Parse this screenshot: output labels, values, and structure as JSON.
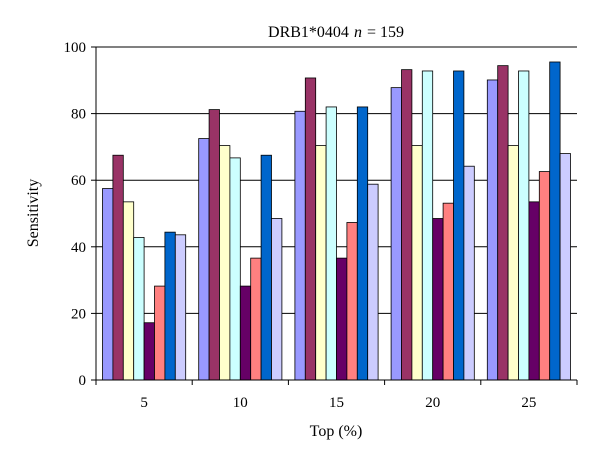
{
  "chart_data": {
    "type": "bar",
    "title_main": "DRB1*0404",
    "title_n": "n",
    "title_rest": "= 159",
    "xlabel": "Top (%)",
    "ylabel": "Sensitivity",
    "ylim": [
      0,
      100
    ],
    "yticks": [
      "0",
      "20",
      "40",
      "60",
      "80",
      "100"
    ],
    "grid": true,
    "legend": "none",
    "categories": [
      "5",
      "10",
      "15",
      "20",
      "25"
    ],
    "series": [
      {
        "color": "#9999ff",
        "values": [
          57.5,
          72.5,
          80.7,
          87.8,
          90.1
        ]
      },
      {
        "color": "#993366",
        "values": [
          67.5,
          81.2,
          90.7,
          93.2,
          94.4
        ]
      },
      {
        "color": "#ffffcc",
        "values": [
          53.5,
          70.4,
          70.4,
          70.4,
          70.4
        ]
      },
      {
        "color": "#ccffff",
        "values": [
          42.8,
          66.7,
          82.0,
          92.8,
          92.8
        ]
      },
      {
        "color": "#660066",
        "values": [
          17.2,
          28.2,
          36.6,
          48.5,
          53.5
        ]
      },
      {
        "color": "#ff8080",
        "values": [
          28.2,
          36.6,
          47.3,
          53.1,
          62.6
        ]
      },
      {
        "color": "#0066cc",
        "values": [
          44.4,
          67.5,
          82.0,
          92.8,
          95.5
        ]
      },
      {
        "color": "#ccccff",
        "values": [
          43.6,
          48.5,
          58.8,
          64.2,
          68.0
        ]
      }
    ]
  }
}
